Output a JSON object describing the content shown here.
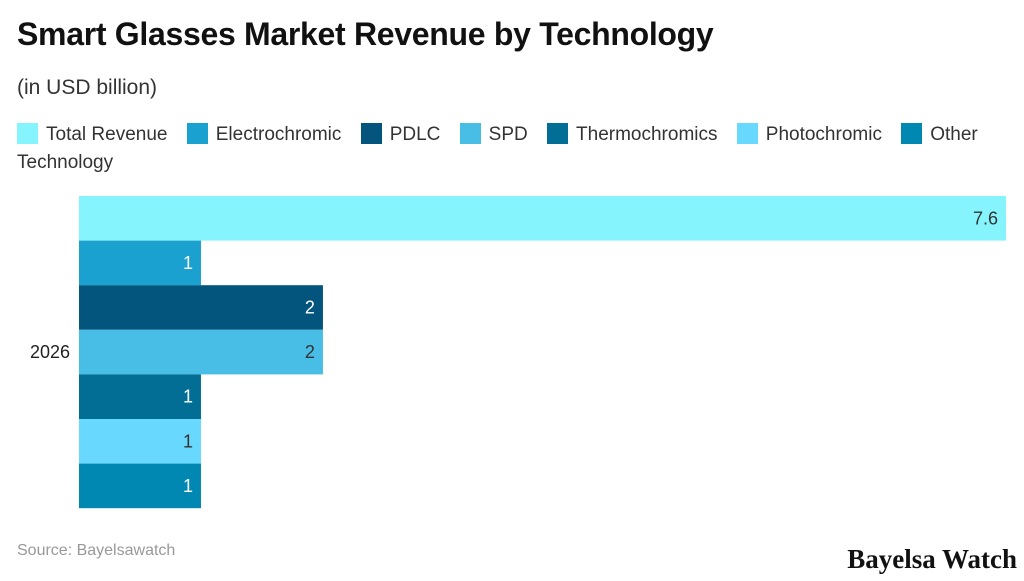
{
  "title": "Smart Glasses Market Revenue by Technology",
  "subtitle": "(in USD billion)",
  "source": "Source: Bayelsawatch",
  "logo": "Bayelsa Watch",
  "chart_data": {
    "type": "bar",
    "orientation": "horizontal",
    "categories": [
      "2026"
    ],
    "legend_position": "top",
    "grid": false,
    "xlim": [
      0,
      7.6
    ],
    "series": [
      {
        "name": "Total Revenue",
        "values": [
          7.6
        ],
        "color": "#86f4fc",
        "label_color": "#333333"
      },
      {
        "name": "Electrochromic",
        "values": [
          1
        ],
        "color": "#1aa1cf",
        "label_color": "#ffffff"
      },
      {
        "name": "PDLC",
        "values": [
          2
        ],
        "color": "#03557e",
        "label_color": "#ffffff"
      },
      {
        "name": "SPD",
        "values": [
          2
        ],
        "color": "#48bde6",
        "label_color": "#333333"
      },
      {
        "name": "Thermochromics",
        "values": [
          1
        ],
        "color": "#036e95",
        "label_color": "#ffffff"
      },
      {
        "name": "Photochromic",
        "values": [
          1
        ],
        "color": "#69d8fe",
        "label_color": "#333333"
      },
      {
        "name": "Other Technology",
        "values": [
          1
        ],
        "color": "#0088b3",
        "label_color": "#ffffff"
      }
    ]
  }
}
